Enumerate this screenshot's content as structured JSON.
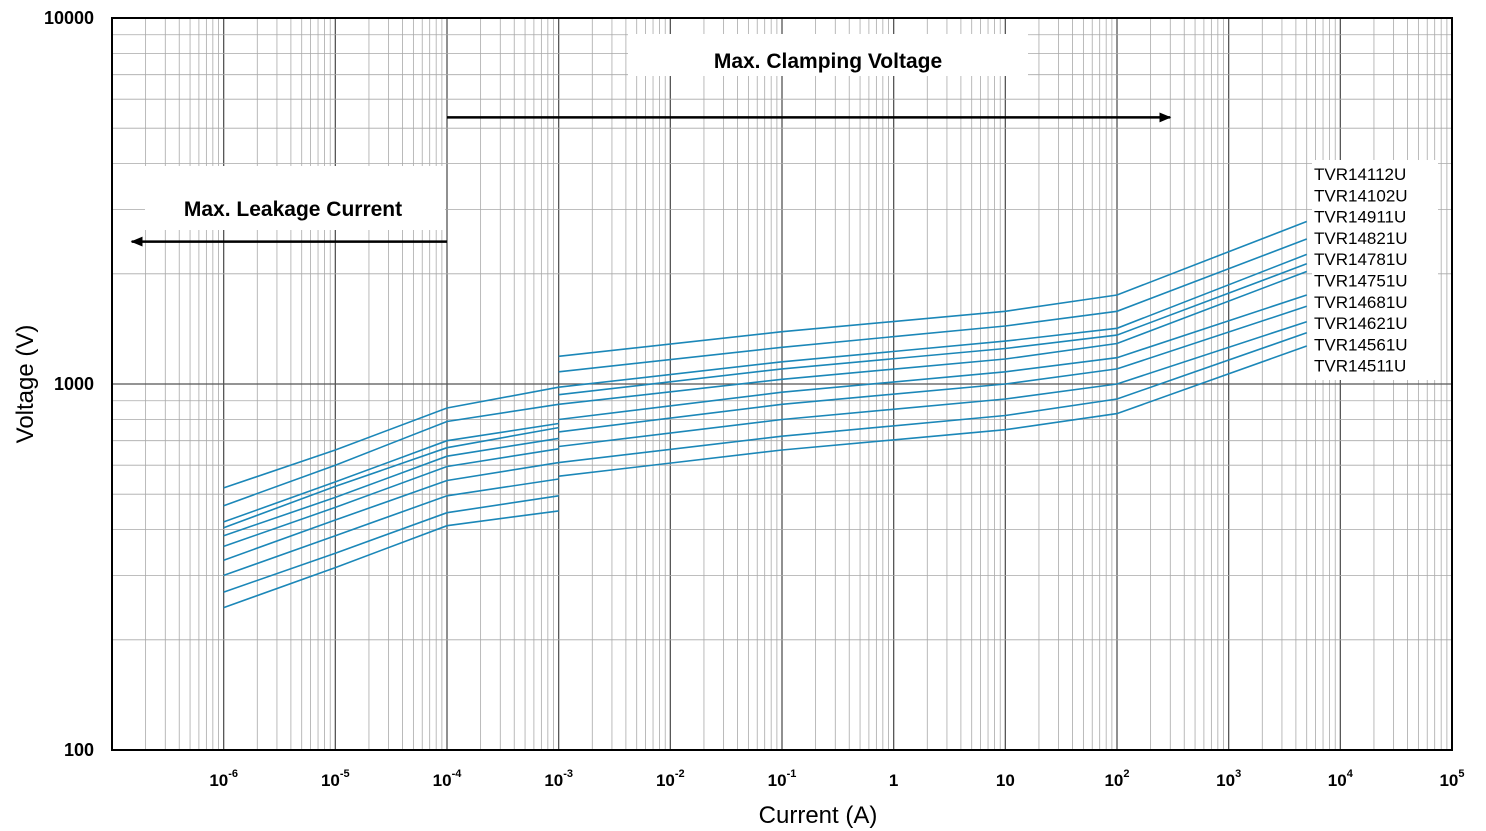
{
  "chart_data": {
    "type": "line",
    "xlabel": "Current (A)",
    "ylabel": "Voltage   (V)",
    "x_scale": "log",
    "y_scale": "log",
    "xlim": [
      1e-07,
      100000
    ],
    "ylim": [
      100,
      10000
    ],
    "grid": true,
    "x_ticks": [
      {
        "value": 1e-06,
        "base": "10",
        "exp": "-6"
      },
      {
        "value": 1e-05,
        "base": "10",
        "exp": "-5"
      },
      {
        "value": 0.0001,
        "base": "10",
        "exp": "-4"
      },
      {
        "value": 0.001,
        "base": "10",
        "exp": "-3"
      },
      {
        "value": 0.01,
        "base": "10",
        "exp": "-2"
      },
      {
        "value": 0.1,
        "base": "10",
        "exp": "-1"
      },
      {
        "value": 1,
        "base": "1",
        "exp": ""
      },
      {
        "value": 10,
        "base": "10",
        "exp": ""
      },
      {
        "value": 100,
        "base": "10",
        "exp": "2"
      },
      {
        "value": 1000,
        "base": "10",
        "exp": "3"
      },
      {
        "value": 10000,
        "base": "10",
        "exp": "4"
      },
      {
        "value": 100000,
        "base": "10",
        "exp": "5"
      }
    ],
    "y_ticks": [
      {
        "value": 10000,
        "label": "10000"
      },
      {
        "value": 1000,
        "label": "1000"
      },
      {
        "value": 100,
        "label": "100"
      }
    ],
    "annotations": [
      {
        "text": "Max. Clamping Voltage",
        "arrow_from": 0.0001,
        "arrow_to": 300,
        "arrow_voltage": 5350
      },
      {
        "text": "Max. Leakage Current",
        "arrow_from": 0.0001,
        "arrow_to": 1.5e-07,
        "arrow_voltage": 2450
      }
    ],
    "legend_position": "right",
    "series_color": "#1b87b8",
    "series": [
      {
        "name": "TVR14112U",
        "leakage": [
          [
            1e-06,
            520
          ],
          [
            1e-05,
            660
          ],
          [
            0.0001,
            860
          ],
          [
            0.001,
            980
          ]
        ],
        "clamping": [
          [
            0.001,
            1190
          ],
          [
            0.1,
            1390
          ],
          [
            10,
            1580
          ],
          [
            100,
            1750
          ],
          [
            5000,
            2780
          ]
        ]
      },
      {
        "name": "TVR14102U",
        "leakage": [
          [
            1e-06,
            465
          ],
          [
            1e-05,
            600
          ],
          [
            0.0001,
            790
          ],
          [
            0.001,
            880
          ]
        ],
        "clamping": [
          [
            0.001,
            1080
          ],
          [
            0.1,
            1260
          ],
          [
            10,
            1440
          ],
          [
            100,
            1580
          ],
          [
            5000,
            2490
          ]
        ]
      },
      {
        "name": "TVR14911U",
        "leakage": [
          [
            1e-06,
            420
          ],
          [
            1e-05,
            540
          ],
          [
            0.0001,
            700
          ],
          [
            0.001,
            780
          ]
        ],
        "clamping": [
          [
            0.001,
            980
          ],
          [
            0.1,
            1150
          ],
          [
            10,
            1310
          ],
          [
            100,
            1420
          ],
          [
            5000,
            2260
          ]
        ]
      },
      {
        "name": "TVR14821U",
        "leakage": [
          [
            1e-06,
            405
          ],
          [
            1e-05,
            525
          ],
          [
            0.0001,
            670
          ],
          [
            0.001,
            760
          ]
        ],
        "clamping": [
          [
            0.001,
            935
          ],
          [
            0.1,
            1100
          ],
          [
            10,
            1250
          ],
          [
            100,
            1360
          ],
          [
            5000,
            2130
          ]
        ]
      },
      {
        "name": "TVR14781U",
        "leakage": [
          [
            1e-06,
            385
          ],
          [
            1e-05,
            490
          ],
          [
            0.0001,
            635
          ],
          [
            0.001,
            710
          ]
        ],
        "clamping": [
          [
            0.001,
            880
          ],
          [
            0.1,
            1030
          ],
          [
            10,
            1170
          ],
          [
            100,
            1290
          ],
          [
            5000,
            2030
          ]
        ]
      },
      {
        "name": "TVR14751U",
        "leakage": [
          [
            1e-06,
            360
          ],
          [
            1e-05,
            460
          ],
          [
            0.0001,
            595
          ],
          [
            0.001,
            665
          ]
        ],
        "clamping": [
          [
            0.001,
            800
          ],
          [
            0.1,
            950
          ],
          [
            10,
            1080
          ],
          [
            100,
            1180
          ],
          [
            5000,
            1750
          ]
        ]
      },
      {
        "name": "TVR14681U",
        "leakage": [
          [
            1e-06,
            330
          ],
          [
            1e-05,
            425
          ],
          [
            0.0001,
            545
          ],
          [
            0.001,
            610
          ]
        ],
        "clamping": [
          [
            0.001,
            740
          ],
          [
            0.1,
            880
          ],
          [
            10,
            1000
          ],
          [
            100,
            1100
          ],
          [
            5000,
            1630
          ]
        ]
      },
      {
        "name": "TVR14621U",
        "leakage": [
          [
            1e-06,
            300
          ],
          [
            1e-05,
            385
          ],
          [
            0.0001,
            495
          ],
          [
            0.001,
            550
          ]
        ],
        "clamping": [
          [
            0.001,
            675
          ],
          [
            0.1,
            800
          ],
          [
            10,
            910
          ],
          [
            100,
            1000
          ],
          [
            5000,
            1480
          ]
        ]
      },
      {
        "name": "TVR14561U",
        "leakage": [
          [
            1e-06,
            270
          ],
          [
            1e-05,
            345
          ],
          [
            0.0001,
            445
          ],
          [
            0.001,
            495
          ]
        ],
        "clamping": [
          [
            0.001,
            610
          ],
          [
            0.1,
            720
          ],
          [
            10,
            820
          ],
          [
            100,
            910
          ],
          [
            5000,
            1380
          ]
        ]
      },
      {
        "name": "TVR14511U",
        "leakage": [
          [
            1e-06,
            245
          ],
          [
            1e-05,
            315
          ],
          [
            0.0001,
            410
          ],
          [
            0.001,
            450
          ]
        ],
        "clamping": [
          [
            0.001,
            560
          ],
          [
            0.1,
            660
          ],
          [
            10,
            750
          ],
          [
            100,
            830
          ],
          [
            5000,
            1270
          ]
        ]
      }
    ]
  }
}
